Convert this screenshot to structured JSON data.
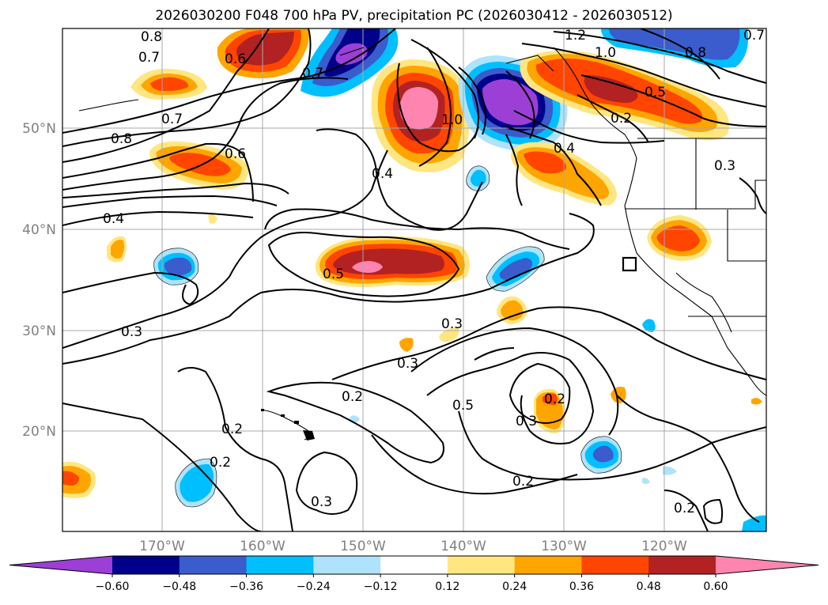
{
  "title": "2026030200 F048 700 hPa PV, precipitation PC (2026030412 - 2026030512)",
  "lat_labels": [
    "50°N",
    "40°N",
    "30°N",
    "20°N"
  ],
  "lon_labels": [
    "170°W",
    "160°W",
    "150°W",
    "140°W",
    "130°W",
    "120°W"
  ],
  "colorbar": {
    "ticks": [
      "−0.60",
      "−0.48",
      "−0.36",
      "−0.24",
      "−0.12",
      "0.12",
      "0.24",
      "0.36",
      "0.48",
      "0.60"
    ],
    "colors": [
      "#9b3fd6",
      "#00008b",
      "#3a5ccc",
      "#00bfff",
      "#aee3fb",
      "#ffffff",
      "#ffe680",
      "#ffa500",
      "#ff4500",
      "#b22222",
      "#ff85b0"
    ]
  },
  "contour_labels": [
    "0.8",
    "0.7",
    "0.6",
    "0.7",
    "1.2",
    "1.0",
    "0.8",
    "0.7",
    "0.5",
    "0.7",
    "1.0",
    "0.4",
    "0.8",
    "0.6",
    "0.4",
    "0.3",
    "0.4",
    "0.5",
    "0.3",
    "0.3",
    "0.3",
    "0.2",
    "0.2",
    "0.5",
    "0.2",
    "0.3",
    "0.2",
    "0.2",
    "0.3",
    "0.2",
    "0.2"
  ]
}
